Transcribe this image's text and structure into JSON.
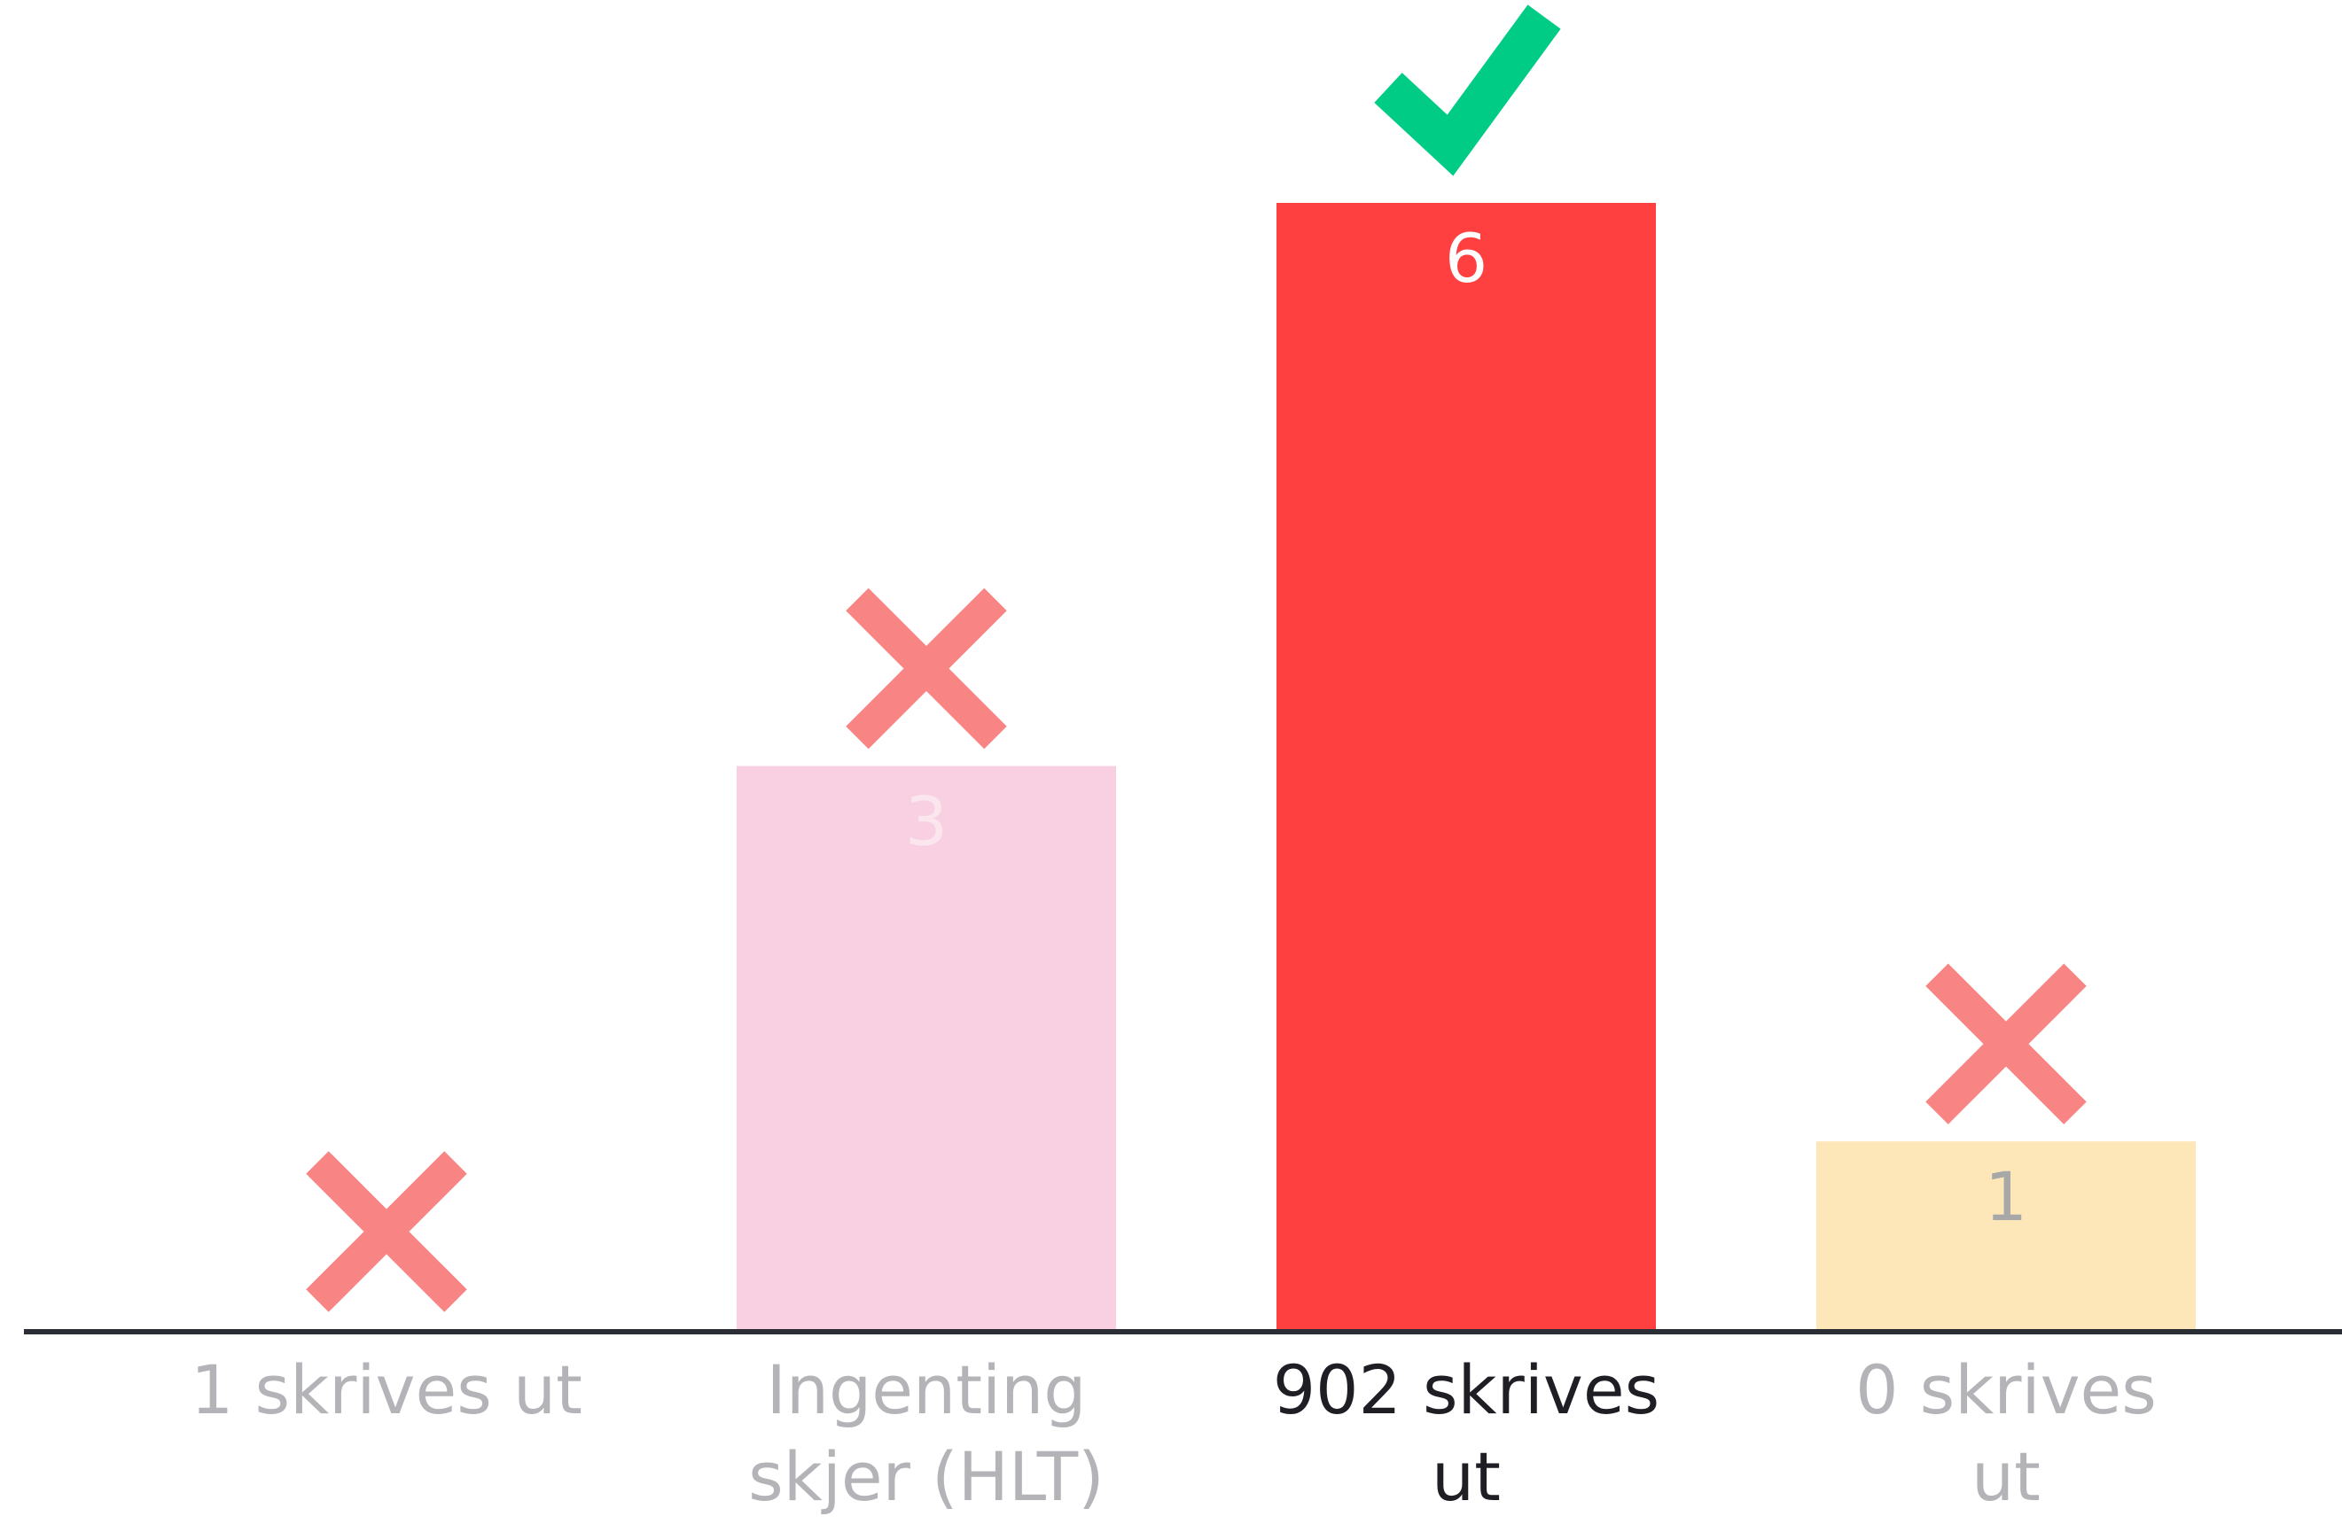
{
  "chart_data": {
    "type": "bar",
    "categories": [
      "1 skrives ut",
      "Ingenting skjer (HLT)",
      "902 skrives ut",
      "0 skrives ut"
    ],
    "values": [
      0,
      3,
      6,
      1
    ],
    "colors": [
      "#ff4040",
      "#f9d0e1",
      "#ff4040",
      "#fde7b8"
    ],
    "correct": [
      false,
      false,
      true,
      false
    ],
    "ylim": [
      0,
      6
    ]
  }
}
